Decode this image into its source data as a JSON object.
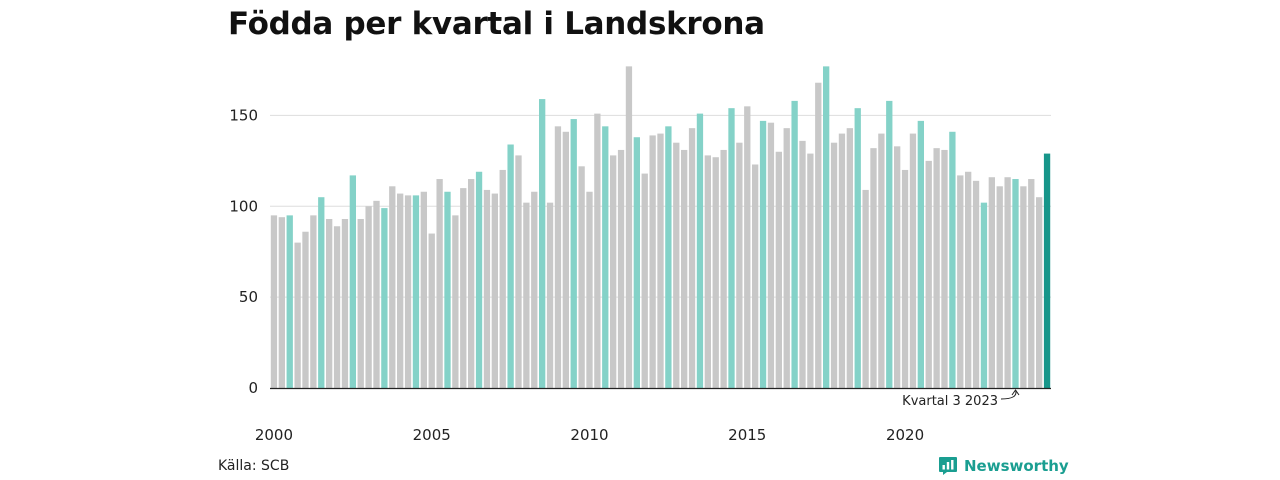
{
  "chart_data": {
    "type": "bar",
    "title": "Födda per kvartal i Landskrona",
    "xlabel": "",
    "ylabel": "",
    "ylim": [
      0,
      175
    ],
    "yticks": [
      0,
      50,
      100,
      150
    ],
    "xticks": [
      "2000",
      "2005",
      "2010",
      "2015",
      "2020"
    ],
    "grid": true,
    "colors": {
      "default": "#c8c8c8",
      "third_quarter": "#84d2c8",
      "latest": "#17968a"
    },
    "series": [
      {
        "x": [
          "2000-1",
          "2000-2",
          "2000-3",
          "2000-4",
          "2001-1",
          "2001-2",
          "2001-3",
          "2001-4",
          "2002-1",
          "2002-2",
          "2002-3",
          "2002-4",
          "2003-1",
          "2003-2",
          "2003-3",
          "2003-4",
          "2004-1",
          "2004-2",
          "2004-3",
          "2004-4",
          "2005-1",
          "2005-2",
          "2005-3",
          "2005-4",
          "2006-1",
          "2006-2",
          "2006-3",
          "2006-4",
          "2007-1",
          "2007-2",
          "2007-3",
          "2007-4",
          "2008-1",
          "2008-2",
          "2008-3",
          "2008-4",
          "2009-1",
          "2009-2",
          "2009-3",
          "2009-4",
          "2010-1",
          "2010-2",
          "2010-3",
          "2010-4",
          "2011-1",
          "2011-2",
          "2011-3",
          "2011-4",
          "2012-1",
          "2012-2",
          "2012-3",
          "2012-4",
          "2013-1",
          "2013-2",
          "2013-3",
          "2013-4",
          "2014-1",
          "2014-2",
          "2014-3",
          "2014-4",
          "2015-1",
          "2015-2",
          "2015-3",
          "2015-4",
          "2016-1",
          "2016-2",
          "2016-3",
          "2016-4",
          "2017-1",
          "2017-2",
          "2017-3",
          "2017-4",
          "2018-1",
          "2018-2",
          "2018-3",
          "2018-4",
          "2019-1",
          "2019-2",
          "2019-3",
          "2019-4",
          "2020-1",
          "2020-2",
          "2020-3",
          "2020-4",
          "2021-1",
          "2021-2",
          "2021-3",
          "2021-4",
          "2022-1",
          "2022-2",
          "2022-3",
          "2022-4",
          "2023-1",
          "2023-2",
          "2023-3",
          "2023-4",
          "2024-1",
          "2024-2",
          "2024-3"
        ],
        "values": [
          95,
          94,
          95,
          80,
          86,
          95,
          105,
          93,
          89,
          93,
          117,
          93,
          100,
          103,
          99,
          111,
          107,
          106,
          106,
          108,
          85,
          115,
          108,
          95,
          110,
          115,
          119,
          109,
          107,
          120,
          134,
          128,
          102,
          108,
          159,
          102,
          144,
          141,
          148,
          122,
          108,
          151,
          144,
          128,
          131,
          177,
          138,
          118,
          139,
          140,
          144,
          135,
          131,
          143,
          151,
          128,
          127,
          131,
          154,
          135,
          155,
          123,
          147,
          146,
          130,
          143,
          158,
          136,
          129,
          168,
          177,
          135,
          140,
          143,
          154,
          109,
          132,
          140,
          158,
          133,
          120,
          140,
          147,
          125,
          132,
          131,
          141,
          117,
          119,
          114,
          102,
          116,
          111,
          116,
          115,
          111,
          115,
          105,
          129
        ]
      }
    ],
    "annotation": {
      "label": "Kvartal 3 2023",
      "target": "2023-3"
    }
  },
  "footer": {
    "source": "Källa: SCB",
    "brand": "Newsworthy"
  }
}
